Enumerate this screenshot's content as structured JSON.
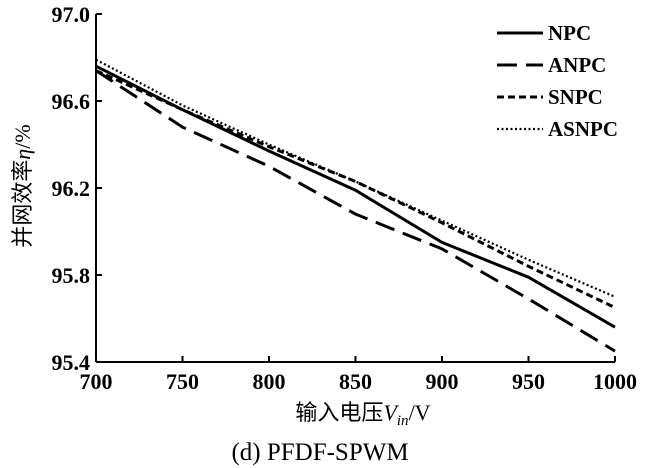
{
  "chart_data": {
    "type": "line",
    "xlabel": {
      "main": "输入电压",
      "var": "V",
      "sub": "in",
      "unit": "/V"
    },
    "ylabel": {
      "main": "并网效率",
      "var": "η",
      "unit": "/%"
    },
    "caption": "(d) PFDF-SPWM",
    "xlim": [
      700,
      1000
    ],
    "ylim": [
      95.4,
      97.0
    ],
    "xticks": [
      700,
      750,
      800,
      850,
      900,
      950,
      1000
    ],
    "yticks": [
      "95.4",
      "95.8",
      "96.2",
      "96.6",
      "97.0"
    ],
    "legend_position": "top-right",
    "series": [
      {
        "name": "NPC",
        "style": "solid",
        "color": "#000000",
        "x": [
          700,
          750,
          800,
          850,
          900,
          950,
          1000
        ],
        "y": [
          96.76,
          96.56,
          96.37,
          96.19,
          95.95,
          95.79,
          95.56
        ]
      },
      {
        "name": "ANPC",
        "style": "long-dash",
        "color": "#000000",
        "x": [
          700,
          750,
          800,
          850,
          900,
          950,
          1000
        ],
        "y": [
          96.74,
          96.48,
          96.3,
          96.08,
          95.92,
          95.69,
          95.45
        ]
      },
      {
        "name": "SNPC",
        "style": "short-dash",
        "color": "#000000",
        "x": [
          700,
          750,
          800,
          850,
          900,
          950,
          1000
        ],
        "y": [
          96.74,
          96.56,
          96.39,
          96.23,
          96.04,
          95.84,
          95.65
        ]
      },
      {
        "name": "ASNPC",
        "style": "dotted",
        "color": "#000000",
        "x": [
          700,
          750,
          800,
          850,
          900,
          950,
          1000
        ],
        "y": [
          96.79,
          96.58,
          96.4,
          96.23,
          96.05,
          95.87,
          95.7
        ]
      }
    ]
  }
}
